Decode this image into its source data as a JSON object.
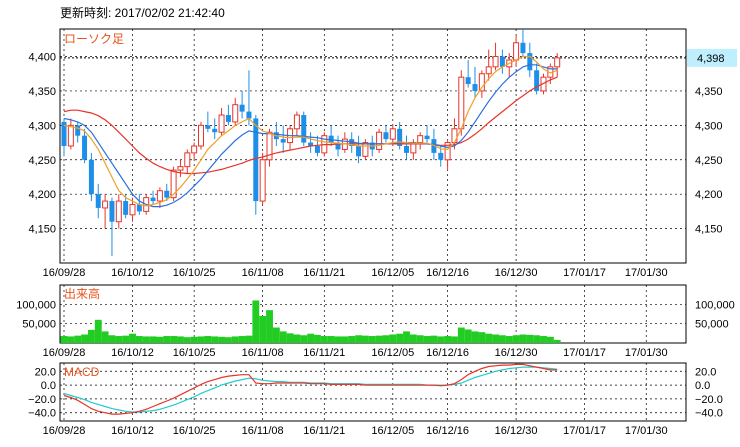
{
  "header": {
    "timestamp": "更新時刻: 2017/02/02 21:42:40"
  },
  "colors": {
    "up": "#e8342a",
    "down": "#1e8fe8",
    "ma_short": "#f0a028",
    "ma_mid": "#2a6fe0",
    "ma_long": "#e8342a",
    "volume": "#22cc22",
    "macd": "#e8342a",
    "signal": "#22cccc",
    "current": "#bfefff"
  },
  "chart_data": [
    {
      "type": "candlestick",
      "title": "ローソク足",
      "x_tick_labels": [
        "16/09/28",
        "16/10/12",
        "16/10/25",
        "16/11/08",
        "16/11/21",
        "16/12/05",
        "16/12/16",
        "16/12/30",
        "17/01/17",
        "17/01/30"
      ],
      "x_tick_index": [
        0,
        10,
        19,
        29,
        38,
        48,
        56,
        66,
        76,
        85
      ],
      "y_ticks": [
        4150,
        4200,
        4250,
        4300,
        4350,
        4400
      ],
      "ylim": [
        4100,
        4440
      ],
      "current_price": 4398,
      "current_price_label": "4,398",
      "candles": [
        [
          4305,
          4310,
          4255,
          4270
        ],
        [
          4270,
          4310,
          4265,
          4300
        ],
        [
          4300,
          4305,
          4275,
          4285
        ],
        [
          4285,
          4295,
          4245,
          4250
        ],
        [
          4250,
          4260,
          4190,
          4200
        ],
        [
          4200,
          4215,
          4165,
          4180
        ],
        [
          4180,
          4200,
          4150,
          4190
        ],
        [
          4190,
          4195,
          4110,
          4160
        ],
        [
          4160,
          4200,
          4150,
          4190
        ],
        [
          4190,
          4200,
          4165,
          4170
        ],
        [
          4170,
          4195,
          4160,
          4185
        ],
        [
          4185,
          4200,
          4170,
          4175
        ],
        [
          4175,
          4200,
          4170,
          4195
        ],
        [
          4195,
          4205,
          4185,
          4190
        ],
        [
          4190,
          4210,
          4180,
          4205
        ],
        [
          4205,
          4215,
          4190,
          4195
        ],
        [
          4195,
          4240,
          4190,
          4235
        ],
        [
          4235,
          4250,
          4225,
          4240
        ],
        [
          4240,
          4265,
          4230,
          4260
        ],
        [
          4260,
          4275,
          4250,
          4270
        ],
        [
          4270,
          4305,
          4265,
          4300
        ],
        [
          4300,
          4320,
          4290,
          4295
        ],
        [
          4295,
          4310,
          4280,
          4290
        ],
        [
          4290,
          4325,
          4285,
          4315
        ],
        [
          4315,
          4330,
          4300,
          4305
        ],
        [
          4305,
          4340,
          4300,
          4330
        ],
        [
          4330,
          4350,
          4310,
          4320
        ],
        [
          4320,
          4380,
          4300,
          4310
        ],
        [
          4310,
          4315,
          4170,
          4190
        ],
        [
          4190,
          4260,
          4185,
          4250
        ],
        [
          4250,
          4295,
          4240,
          4290
        ],
        [
          4290,
          4305,
          4270,
          4280
        ],
        [
          4280,
          4300,
          4260,
          4275
        ],
        [
          4275,
          4300,
          4265,
          4295
        ],
        [
          4295,
          4320,
          4285,
          4315
        ],
        [
          4315,
          4320,
          4270,
          4275
        ],
        [
          4275,
          4290,
          4260,
          4270
        ],
        [
          4270,
          4285,
          4255,
          4260
        ],
        [
          4260,
          4290,
          4255,
          4285
        ],
        [
          4285,
          4300,
          4270,
          4275
        ],
        [
          4275,
          4285,
          4255,
          4265
        ],
        [
          4265,
          4290,
          4260,
          4280
        ],
        [
          4280,
          4290,
          4260,
          4270
        ],
        [
          4270,
          4285,
          4245,
          4255
        ],
        [
          4255,
          4280,
          4250,
          4275
        ],
        [
          4275,
          4285,
          4255,
          4265
        ],
        [
          4265,
          4295,
          4260,
          4290
        ],
        [
          4290,
          4300,
          4275,
          4280
        ],
        [
          4280,
          4300,
          4270,
          4295
        ],
        [
          4295,
          4305,
          4265,
          4270
        ],
        [
          4270,
          4285,
          4250,
          4260
        ],
        [
          4260,
          4280,
          4250,
          4275
        ],
        [
          4275,
          4290,
          4265,
          4285
        ],
        [
          4285,
          4300,
          4275,
          4280
        ],
        [
          4280,
          4295,
          4250,
          4260
        ],
        [
          4260,
          4270,
          4240,
          4250
        ],
        [
          4250,
          4280,
          4235,
          4275
        ],
        [
          4275,
          4310,
          4265,
          4295
        ],
        [
          4295,
          4380,
          4285,
          4370
        ],
        [
          4370,
          4395,
          4355,
          4360
        ],
        [
          4360,
          4385,
          4340,
          4350
        ],
        [
          4350,
          4380,
          4340,
          4375
        ],
        [
          4375,
          4410,
          4365,
          4385
        ],
        [
          4385,
          4420,
          4380,
          4400
        ],
        [
          4400,
          4410,
          4375,
          4385
        ],
        [
          4385,
          4405,
          4370,
          4395
        ],
        [
          4395,
          4430,
          4385,
          4420
        ],
        [
          4420,
          4440,
          4400,
          4405
        ],
        [
          4405,
          4420,
          4370,
          4380
        ],
        [
          4380,
          4390,
          4345,
          4350
        ],
        [
          4350,
          4375,
          4345,
          4370
        ],
        [
          4370,
          4390,
          4360,
          4385
        ],
        [
          4385,
          4405,
          4370,
          4398
        ]
      ],
      "ma_short": [
        4300,
        4298,
        4296,
        4292,
        4280,
        4265,
        4245,
        4225,
        4205,
        4195,
        4190,
        4185,
        4183,
        4185,
        4188,
        4192,
        4200,
        4210,
        4222,
        4235,
        4250,
        4265,
        4275,
        4285,
        4292,
        4300,
        4305,
        4310,
        4300,
        4292,
        4288,
        4285,
        4283,
        4282,
        4283,
        4283,
        4280,
        4278,
        4276,
        4275,
        4274,
        4273,
        4272,
        4270,
        4270,
        4270,
        4271,
        4273,
        4275,
        4276,
        4275,
        4274,
        4274,
        4274,
        4271,
        4266,
        4265,
        4275,
        4295,
        4320,
        4340,
        4355,
        4368,
        4378,
        4385,
        4390,
        4395,
        4400,
        4400,
        4392,
        4382,
        4376,
        4380
      ],
      "ma_mid": [
        4310,
        4308,
        4305,
        4300,
        4290,
        4275,
        4260,
        4245,
        4230,
        4215,
        4200,
        4190,
        4185,
        4182,
        4182,
        4184,
        4188,
        4194,
        4202,
        4212,
        4222,
        4234,
        4246,
        4258,
        4268,
        4278,
        4286,
        4292,
        4290,
        4288,
        4288,
        4287,
        4286,
        4285,
        4285,
        4284,
        4283,
        4282,
        4280,
        4279,
        4278,
        4277,
        4276,
        4274,
        4273,
        4273,
        4273,
        4273,
        4274,
        4275,
        4275,
        4275,
        4274,
        4273,
        4272,
        4270,
        4268,
        4270,
        4278,
        4290,
        4305,
        4320,
        4335,
        4348,
        4360,
        4370,
        4378,
        4385,
        4388,
        4388,
        4385,
        4382,
        4382
      ],
      "ma_long": [
        4320,
        4322,
        4322,
        4320,
        4318,
        4314,
        4308,
        4300,
        4290,
        4280,
        4270,
        4260,
        4252,
        4245,
        4240,
        4236,
        4233,
        4231,
        4230,
        4230,
        4231,
        4232,
        4234,
        4236,
        4239,
        4242,
        4245,
        4249,
        4252,
        4254,
        4257,
        4260,
        4262,
        4264,
        4266,
        4268,
        4270,
        4271,
        4272,
        4272,
        4273,
        4273,
        4273,
        4273,
        4273,
        4273,
        4273,
        4273,
        4273,
        4273,
        4273,
        4273,
        4273,
        4273,
        4272,
        4271,
        4271,
        4272,
        4275,
        4280,
        4287,
        4295,
        4304,
        4312,
        4320,
        4328,
        4336,
        4343,
        4350,
        4356,
        4361,
        4366,
        4370
      ]
    },
    {
      "type": "bar",
      "title": "出来高",
      "y_ticks": [
        50000,
        100000
      ],
      "ylim": [
        0,
        150000
      ],
      "values": [
        18000,
        17000,
        19000,
        22000,
        34000,
        60000,
        30000,
        20000,
        18000,
        19000,
        24000,
        18000,
        17000,
        17000,
        16000,
        18000,
        18000,
        17000,
        15000,
        16000,
        17000,
        18000,
        17000,
        16000,
        15000,
        17000,
        18000,
        19000,
        110000,
        70000,
        85000,
        40000,
        30000,
        25000,
        22000,
        20000,
        24000,
        21000,
        18000,
        18000,
        17000,
        17000,
        18000,
        20000,
        19000,
        18000,
        19000,
        20000,
        22000,
        24000,
        30000,
        22000,
        20000,
        18000,
        19000,
        17000,
        18000,
        17000,
        40000,
        35000,
        30000,
        28000,
        24000,
        22000,
        20000,
        18000,
        20000,
        22000,
        21000,
        20000,
        18000,
        16000,
        8000
      ]
    },
    {
      "type": "line",
      "title": "MACD",
      "y_ticks": [
        -40,
        -20,
        0,
        20
      ],
      "ylim": [
        -52,
        32
      ],
      "y_tick_labels_left": [
        "−40.0",
        "−20.0",
        "0.0",
        "20.0"
      ],
      "y_tick_labels_right": [
        "−40.0",
        "−20.0",
        "0.0",
        "20.0"
      ],
      "macd": [
        -15,
        -18,
        -22,
        -28,
        -34,
        -38,
        -40,
        -42,
        -42,
        -41,
        -40,
        -38,
        -35,
        -31,
        -27,
        -23,
        -19,
        -14,
        -9,
        -4,
        1,
        5,
        8,
        11,
        13,
        14,
        15,
        15,
        3,
        2,
        2,
        3,
        3,
        3,
        3,
        3,
        2,
        2,
        2,
        1,
        1,
        1,
        1,
        1,
        0,
        0,
        0,
        0,
        0,
        0,
        0,
        0,
        0,
        0,
        0,
        -1,
        0,
        2,
        8,
        15,
        20,
        24,
        27,
        28,
        29,
        29,
        30,
        30,
        28,
        26,
        24,
        22,
        22
      ],
      "signal": [
        -12,
        -15,
        -18,
        -21,
        -25,
        -28,
        -31,
        -34,
        -36,
        -38,
        -39,
        -39,
        -38,
        -37,
        -35,
        -32,
        -29,
        -25,
        -21,
        -17,
        -12,
        -8,
        -4,
        0,
        3,
        6,
        8,
        10,
        9,
        7,
        6,
        5,
        5,
        4,
        4,
        4,
        3,
        3,
        3,
        2,
        2,
        2,
        2,
        2,
        1,
        1,
        1,
        1,
        1,
        1,
        1,
        1,
        1,
        0,
        0,
        0,
        0,
        1,
        3,
        7,
        11,
        14,
        17,
        20,
        22,
        24,
        25,
        26,
        26,
        26,
        25,
        24,
        23
      ]
    }
  ]
}
